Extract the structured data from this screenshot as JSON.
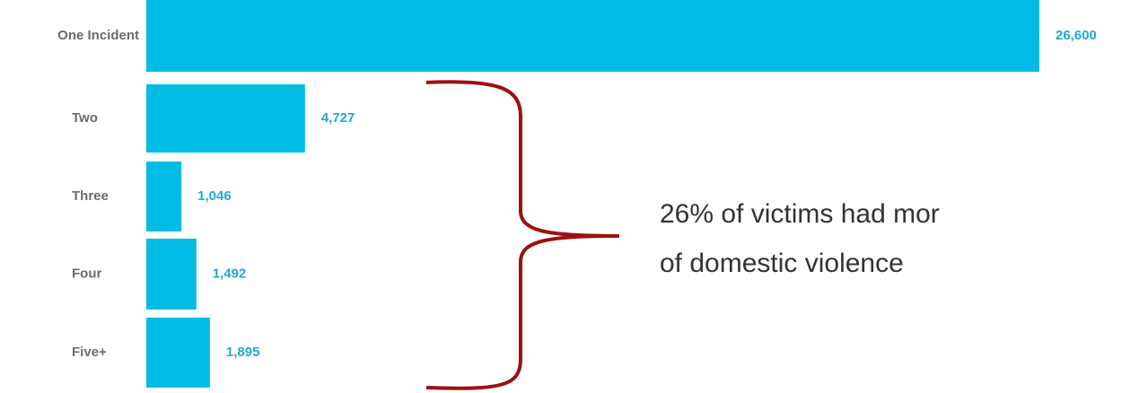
{
  "chart_data": {
    "type": "barh",
    "categories": [
      "One Incident",
      "Two",
      "Three",
      "Four",
      "Five+"
    ],
    "values": [
      26600,
      4727,
      1046,
      1492,
      1895
    ],
    "value_labels": [
      "26,600",
      "4,727",
      "1,046",
      "1,492",
      "1,895"
    ],
    "color": "#00bce4",
    "annotations": [
      "26% of victims had mor",
      "of domestic violence"
    ]
  }
}
